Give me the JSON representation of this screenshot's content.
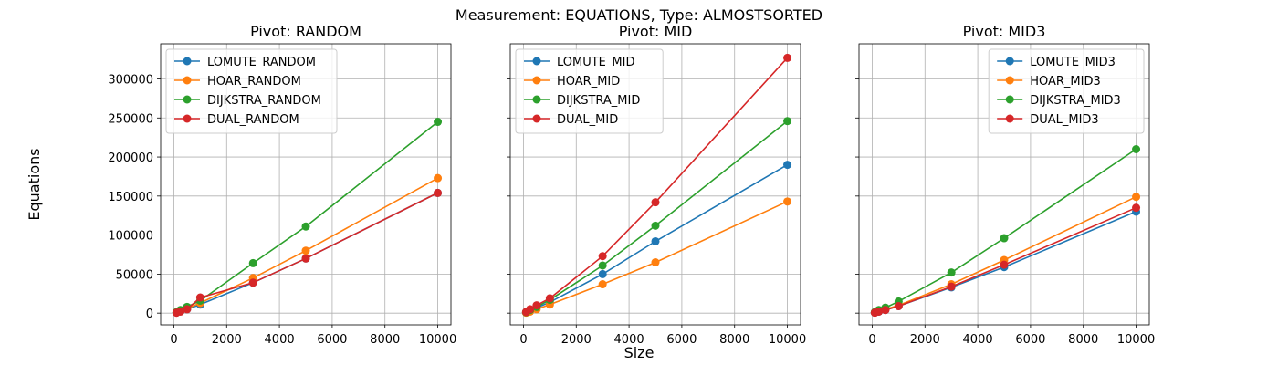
{
  "figure": {
    "suptitle": "Measurement: EQUATIONS, Type: ALMOSTSORTED",
    "shared_xlabel": "Size",
    "shared_ylabel": "Equations"
  },
  "chart_data": [
    {
      "type": "line",
      "title": "Pivot: RANDOM",
      "x": [
        100,
        250,
        500,
        1000,
        3000,
        5000,
        10000
      ],
      "xlim": [
        -500,
        10500
      ],
      "ylim": [
        -15000,
        345000
      ],
      "xticks": [
        0,
        2000,
        4000,
        6000,
        8000,
        10000
      ],
      "yticks": [
        0,
        50000,
        100000,
        150000,
        200000,
        250000,
        300000
      ],
      "show_yticklabels": true,
      "grid": true,
      "legend_position": "upper-left",
      "series": [
        {
          "name": "LOMUTE_RANDOM",
          "color": "#1f77b4",
          "values": [
            800,
            2500,
            5000,
            11000,
            39000,
            70000,
            154000
          ]
        },
        {
          "name": "HOAR_RANDOM",
          "color": "#ff7f0e",
          "values": [
            1000,
            3000,
            6000,
            13000,
            45000,
            80000,
            173000
          ]
        },
        {
          "name": "DIJKSTRA_RANDOM",
          "color": "#2ca02c",
          "values": [
            1200,
            4000,
            8000,
            16000,
            64000,
            111000,
            245000
          ]
        },
        {
          "name": "DUAL_RANDOM",
          "color": "#d62728",
          "values": [
            500,
            2000,
            5000,
            20000,
            39000,
            70000,
            154000
          ]
        }
      ]
    },
    {
      "type": "line",
      "title": "Pivot: MID",
      "x": [
        100,
        250,
        500,
        1000,
        3000,
        5000,
        10000
      ],
      "xlim": [
        -500,
        10500
      ],
      "ylim": [
        -15000,
        345000
      ],
      "xticks": [
        0,
        2000,
        4000,
        6000,
        8000,
        10000
      ],
      "yticks": [
        0,
        50000,
        100000,
        150000,
        200000,
        250000,
        300000
      ],
      "show_yticklabels": false,
      "grid": true,
      "legend_position": "upper-left",
      "series": [
        {
          "name": "LOMUTE_MID",
          "color": "#1f77b4",
          "values": [
            1000,
            3000,
            7000,
            14000,
            50000,
            92000,
            190000
          ]
        },
        {
          "name": "HOAR_MID",
          "color": "#ff7f0e",
          "values": [
            600,
            2000,
            5000,
            11000,
            37000,
            65000,
            143000
          ]
        },
        {
          "name": "DIJKSTRA_MID",
          "color": "#2ca02c",
          "values": [
            1200,
            4000,
            8000,
            17000,
            61000,
            112000,
            246000
          ]
        },
        {
          "name": "DUAL_MID",
          "color": "#d62728",
          "values": [
            1500,
            5000,
            10000,
            19000,
            73000,
            142000,
            327000
          ]
        }
      ]
    },
    {
      "type": "line",
      "title": "Pivot: MID3",
      "x": [
        100,
        250,
        500,
        1000,
        3000,
        5000,
        10000
      ],
      "xlim": [
        -500,
        10500
      ],
      "ylim": [
        -15000,
        345000
      ],
      "xticks": [
        0,
        2000,
        4000,
        6000,
        8000,
        10000
      ],
      "yticks": [
        0,
        50000,
        100000,
        150000,
        200000,
        250000,
        300000
      ],
      "show_yticklabels": false,
      "grid": true,
      "legend_position": "upper-right",
      "series": [
        {
          "name": "LOMUTE_MID3",
          "color": "#1f77b4",
          "values": [
            700,
            2000,
            4000,
            9000,
            33000,
            59000,
            130000
          ]
        },
        {
          "name": "HOAR_MID3",
          "color": "#ff7f0e",
          "values": [
            800,
            2500,
            5000,
            10000,
            37000,
            68000,
            149000
          ]
        },
        {
          "name": "DIJKSTRA_MID3",
          "color": "#2ca02c",
          "values": [
            1200,
            4000,
            7000,
            15000,
            52000,
            96000,
            210000
          ]
        },
        {
          "name": "DUAL_MID3",
          "color": "#d62728",
          "values": [
            600,
            2000,
            4000,
            9000,
            34000,
            62000,
            135000
          ]
        }
      ]
    }
  ]
}
